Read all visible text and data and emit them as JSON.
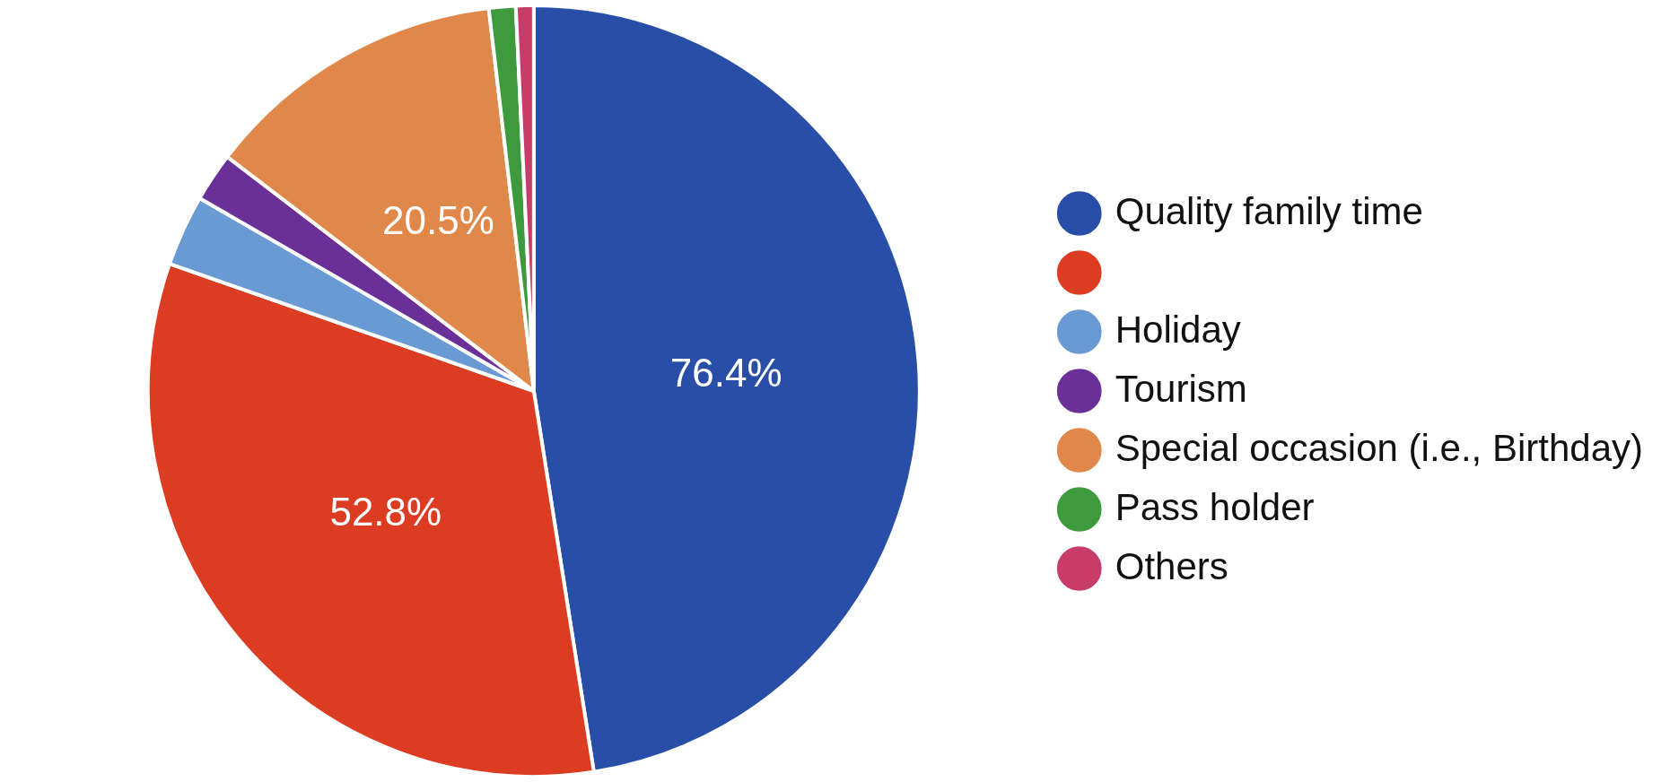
{
  "chart_data": {
    "type": "pie",
    "categories": [
      "Quality family time",
      null,
      "Holiday",
      "Tourism",
      "Special occasion (i.e., Birthday)",
      "Pass holder",
      "Others"
    ],
    "values": [
      76.4,
      52.8,
      4.8,
      3.3,
      20.5,
      1.8,
      1.2
    ],
    "colors": [
      "#284ea8",
      "#dc3c22",
      "#6a9ad4",
      "#6a3098",
      "#e0884a",
      "#3d9a3d",
      "#c83c6a"
    ],
    "value_labels": [
      "76.4%",
      "52.8%",
      null,
      null,
      "20.5%",
      null,
      null
    ],
    "legend": "right"
  }
}
